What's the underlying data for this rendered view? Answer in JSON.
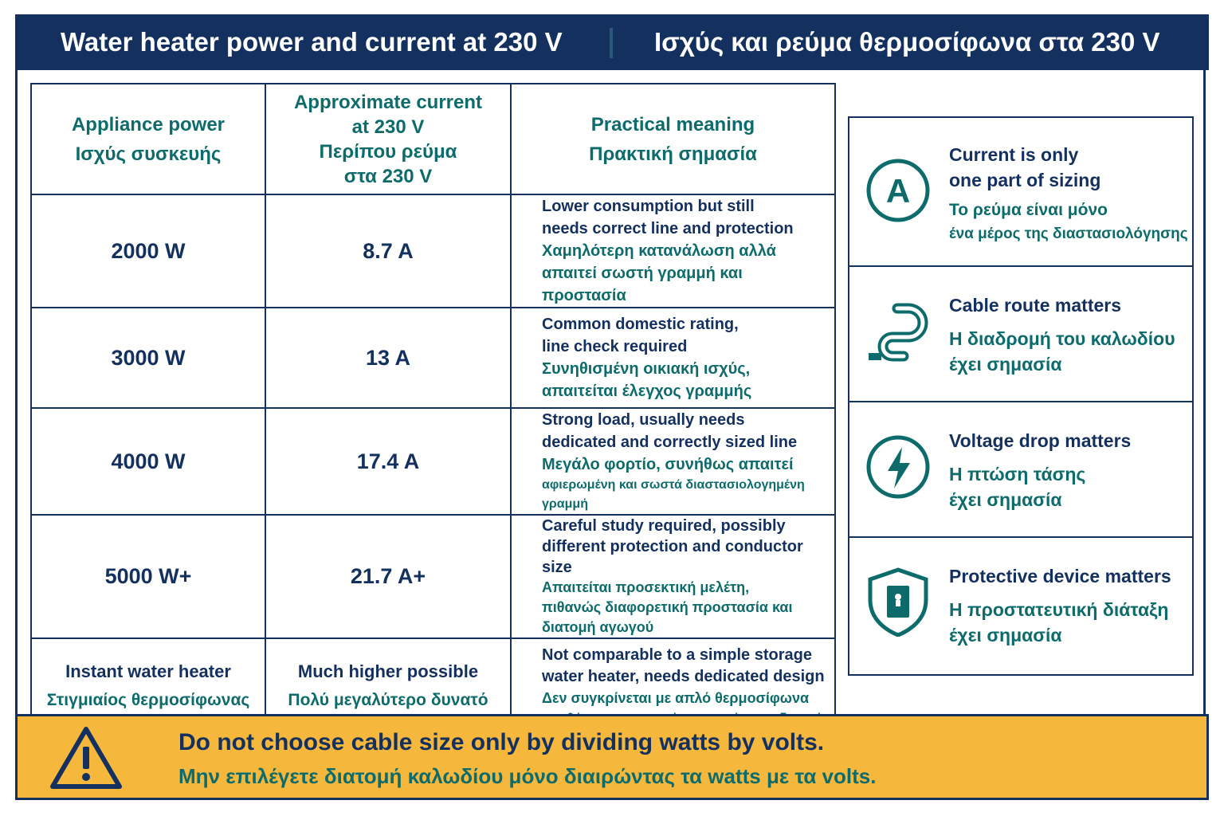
{
  "header": {
    "title_en": "Water heater power and current at 230 V",
    "title_gr": "Ισχύς και ρεύμα θερμοσίφωνα στα 230 V"
  },
  "table": {
    "headers": [
      {
        "lines": [
          "Appliance power",
          "Ισχύς συσκευής"
        ]
      },
      {
        "lines": [
          "Approximate current",
          "at 230 V",
          "Περίπου ρεύμα",
          "στα 230 V"
        ]
      },
      {
        "lines": [
          "Practical meaning",
          "Πρακτική σημασία"
        ]
      }
    ],
    "rows": [
      {
        "power": "2000 W",
        "current": "8.7 A",
        "en": [
          "Lower consumption but still",
          "needs correct line and protection"
        ],
        "gr": [
          "Χαμηλότερη κατανάλωση αλλά",
          "απαιτεί σωστή γραμμή και προστασία"
        ]
      },
      {
        "power": "3000 W",
        "current": "13 A",
        "en": [
          "Common domestic rating,",
          "line check required"
        ],
        "gr": [
          "Συνηθισμένη οικιακή ισχύς,",
          "απαιτείται έλεγχος γραμμής"
        ]
      },
      {
        "power": "4000 W",
        "current": "17.4 A",
        "en": [
          "Strong load, usually needs",
          "dedicated and correctly sized line"
        ],
        "gr": [
          "Μεγάλο φορτίο, συνήθως απαιτεί",
          "αφιερωμένη και σωστά διαστασιολογημένη γραμμή"
        ]
      },
      {
        "power": "5000 W+",
        "current": "21.7 A+",
        "en": [
          "Careful study required, possibly",
          "different protection and conductor size"
        ],
        "gr": [
          "Απαιτείται προσεκτική μελέτη,",
          "πιθανώς διαφορετική προστασία και",
          "διατομή αγωγού"
        ]
      },
      {
        "power_en": "Instant water heater",
        "power_gr": "Στιγμιαίος θερμοσίφωνας",
        "current_en": "Much higher possible",
        "current_gr": "Πολύ μεγαλύτερο δυνατό",
        "en": [
          "Not comparable to a simple storage",
          "water heater, needs dedicated design"
        ],
        "gr": [
          "Δεν συγκρίνεται με απλό θερμοσίφωνα",
          "αποθήκευσης, απαιτεί αφιερωμένο σχεδιασμό"
        ]
      }
    ]
  },
  "cards": [
    {
      "icon": "current-a-icon",
      "en": [
        "Current is only",
        "one part of sizing"
      ],
      "gr": [
        "Το ρεύμα είναι μόνο",
        "ένα μέρος της διαστασιολόγησης"
      ]
    },
    {
      "icon": "cable-icon",
      "en": [
        "Cable route matters"
      ],
      "gr": [
        "Η διαδρομή του καλωδίου",
        "έχει σημασία"
      ]
    },
    {
      "icon": "lightning-icon",
      "en": [
        "Voltage drop matters"
      ],
      "gr": [
        "Η πτώση τάσης",
        "έχει σημασία"
      ]
    },
    {
      "icon": "shield-icon",
      "en": [
        "Protective device matters"
      ],
      "gr": [
        "Η προστατευτική διάταξη",
        "έχει σημασία"
      ]
    }
  ],
  "warning": {
    "icon": "warning-triangle-icon",
    "en": "Do not choose cable size only by dividing watts by volts.",
    "gr": "Μην επιλέγετε διατομή καλωδίου μόνο διαιρώντας τα watts με τα volts."
  },
  "colors": {
    "navy": "#14305e",
    "teal": "#0e6b6b",
    "amber": "#f6b83c"
  }
}
